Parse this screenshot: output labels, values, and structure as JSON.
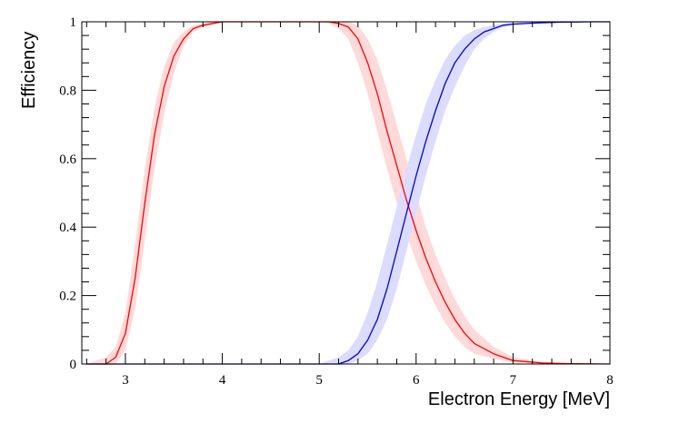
{
  "chart_data": {
    "type": "line",
    "title": "",
    "xlabel": "Electron Energy [MeV]",
    "ylabel": "Efficiency",
    "xlim": [
      2.55,
      8.0
    ],
    "ylim": [
      0,
      1.0
    ],
    "grid": false,
    "legend": "none",
    "x_ticks": [
      3,
      4,
      5,
      6,
      7,
      8
    ],
    "x_tick_labels": [
      "3",
      "4",
      "5",
      "6",
      "7",
      "8"
    ],
    "y_ticks": [
      0,
      0.2,
      0.4,
      0.6,
      0.8,
      1.0
    ],
    "y_tick_labels": [
      "0",
      "0.2",
      "0.4",
      "0.6",
      "0.8",
      "1"
    ],
    "series": [
      {
        "color": "#ff0000",
        "band_color": "#ffdada",
        "x": [
          2.6,
          2.8,
          2.9,
          3.0,
          3.1,
          3.2,
          3.3,
          3.4,
          3.5,
          3.6,
          3.7,
          3.8,
          3.9,
          4.0,
          4.5,
          5.0,
          5.1,
          5.2,
          5.3,
          5.4,
          5.5,
          5.6,
          5.7,
          5.8,
          5.9,
          6.0,
          6.1,
          6.2,
          6.3,
          6.4,
          6.5,
          6.6,
          6.8,
          7.0,
          7.3,
          7.6,
          8.0
        ],
        "y": [
          0.0,
          0.0,
          0.02,
          0.09,
          0.25,
          0.47,
          0.67,
          0.81,
          0.9,
          0.95,
          0.98,
          0.99,
          0.995,
          1.0,
          1.0,
          1.0,
          1.0,
          0.995,
          0.985,
          0.95,
          0.88,
          0.79,
          0.68,
          0.58,
          0.48,
          0.39,
          0.31,
          0.24,
          0.18,
          0.13,
          0.09,
          0.06,
          0.03,
          0.01,
          0.003,
          0.001,
          0.0
        ],
        "y_low": [
          0.0,
          0.0,
          0.0,
          0.04,
          0.16,
          0.36,
          0.57,
          0.73,
          0.85,
          0.93,
          0.97,
          0.985,
          0.99,
          1.0,
          1.0,
          1.0,
          0.995,
          0.98,
          0.95,
          0.88,
          0.79,
          0.68,
          0.57,
          0.47,
          0.38,
          0.3,
          0.23,
          0.17,
          0.12,
          0.08,
          0.05,
          0.03,
          0.015,
          0.004,
          0.001,
          0.0,
          0.0
        ],
        "y_high": [
          0.0,
          0.02,
          0.05,
          0.15,
          0.35,
          0.57,
          0.75,
          0.87,
          0.94,
          0.97,
          0.99,
          0.995,
          1.0,
          1.0,
          1.0,
          1.0,
          1.0,
          1.0,
          1.0,
          0.99,
          0.95,
          0.89,
          0.8,
          0.7,
          0.6,
          0.5,
          0.4,
          0.32,
          0.25,
          0.19,
          0.14,
          0.1,
          0.05,
          0.02,
          0.006,
          0.002,
          0.0
        ]
      },
      {
        "color": "#0000dd",
        "band_color": "#dcdcff",
        "x": [
          2.6,
          5.0,
          5.2,
          5.3,
          5.4,
          5.5,
          5.6,
          5.7,
          5.8,
          5.9,
          6.0,
          6.1,
          6.2,
          6.3,
          6.4,
          6.5,
          6.6,
          6.7,
          6.8,
          6.9,
          7.0,
          7.2,
          7.5,
          7.8,
          8.0
        ],
        "y": [
          0.0,
          0.0,
          0.0,
          0.01,
          0.03,
          0.07,
          0.13,
          0.22,
          0.33,
          0.44,
          0.55,
          0.65,
          0.74,
          0.82,
          0.88,
          0.92,
          0.95,
          0.97,
          0.98,
          0.99,
          0.993,
          0.996,
          0.999,
          1.0,
          1.0
        ],
        "y_low": [
          0.0,
          0.0,
          0.0,
          0.0,
          0.01,
          0.03,
          0.07,
          0.13,
          0.22,
          0.33,
          0.44,
          0.55,
          0.65,
          0.74,
          0.81,
          0.87,
          0.92,
          0.95,
          0.97,
          0.985,
          0.99,
          0.995,
          0.999,
          1.0,
          1.0
        ],
        "y_high": [
          0.0,
          0.0,
          0.02,
          0.04,
          0.08,
          0.15,
          0.24,
          0.35,
          0.46,
          0.57,
          0.67,
          0.76,
          0.83,
          0.89,
          0.93,
          0.96,
          0.975,
          0.985,
          0.99,
          0.995,
          0.997,
          0.998,
          1.0,
          1.0,
          1.0
        ]
      }
    ]
  }
}
